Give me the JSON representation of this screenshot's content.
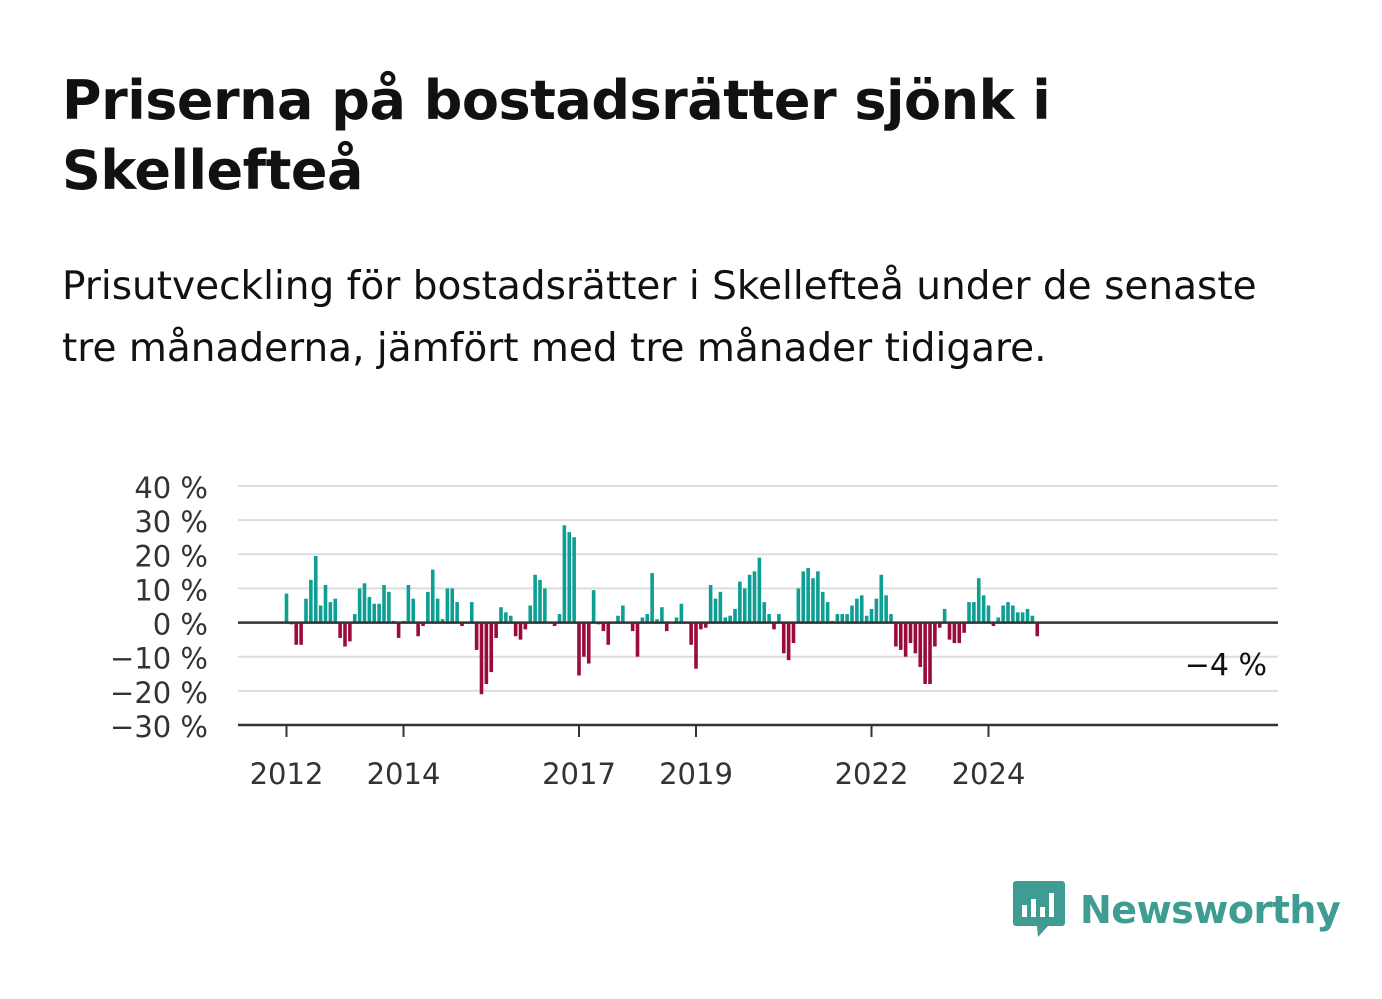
{
  "title": "Priserna på bostadsrätter sjönk i Skellefteå",
  "subtitle": "Prisutveckling för bostadsrätter i Skellefteå under de senaste tre månaderna, jämfört med tre månader tidigare.",
  "brand": {
    "name": "Newsworthy",
    "color": "#3e9c93"
  },
  "colors": {
    "positive": "#0e9f94",
    "negative": "#9b0a3c",
    "grid": "#dddddd",
    "axis": "#333333"
  },
  "chart_data": {
    "type": "bar",
    "ylim": [
      -30,
      40
    ],
    "yticks": [
      40,
      30,
      20,
      10,
      0,
      -10,
      -20,
      -30
    ],
    "ytick_labels": [
      "40 %",
      "30 %",
      "20 %",
      "10 %",
      "0 %",
      "−10 %",
      "−20 %",
      "−30 %"
    ],
    "x_start": "2012-01",
    "x_end": "2025-04",
    "xticks": [
      {
        "label": "2012",
        "month": "2012-01"
      },
      {
        "label": "2014",
        "month": "2014-01"
      },
      {
        "label": "2017",
        "month": "2017-01"
      },
      {
        "label": "2019",
        "month": "2019-01"
      },
      {
        "label": "2022",
        "month": "2022-01"
      },
      {
        "label": "2024",
        "month": "2024-01"
      }
    ],
    "grid": true,
    "values": [
      8.5,
      -0.5,
      -6.5,
      -6.5,
      7,
      12.5,
      19.5,
      5,
      11,
      6,
      7,
      -4.5,
      -7,
      -5.5,
      2.5,
      10,
      11.5,
      7.5,
      5.5,
      5.5,
      11,
      9,
      0.5,
      -4.5,
      0.5,
      11,
      7,
      -4,
      -1,
      9,
      15.5,
      7,
      1,
      10,
      10,
      6,
      -1,
      0,
      6,
      -8,
      -21,
      -18,
      -14.5,
      -4.5,
      4.5,
      3,
      2,
      -4,
      -5,
      -2,
      5,
      14,
      12.5,
      10,
      0,
      -1,
      2.5,
      28.5,
      26.5,
      25,
      -15.5,
      -10,
      -12,
      9.5,
      -0.5,
      -2.5,
      -6.5,
      0,
      2,
      5,
      0,
      -2.5,
      -10,
      1.5,
      2.5,
      14.5,
      1,
      4.5,
      -2.5,
      0,
      1.5,
      5.5,
      0,
      -6.5,
      -13.5,
      -2,
      -1.5,
      11,
      7,
      9,
      1.5,
      2,
      4,
      12,
      10,
      14,
      15,
      19,
      6,
      2.5,
      -2,
      2.5,
      -9,
      -11,
      -6,
      10,
      15,
      16,
      13,
      15,
      9,
      6,
      0.5,
      2.5,
      2.5,
      2.5,
      5,
      7,
      8,
      2,
      4,
      7,
      14,
      8,
      2.5,
      -7,
      -8,
      -10,
      -6,
      -9,
      -13,
      -18,
      -18,
      -7,
      -1.5,
      4,
      -5,
      -6,
      -6,
      -3,
      6,
      6,
      13,
      8,
      5,
      -1,
      1.5,
      5,
      6,
      5,
      3,
      3,
      4,
      2,
      -4
    ],
    "annotation": {
      "label": "−4 %",
      "value": -4
    }
  }
}
